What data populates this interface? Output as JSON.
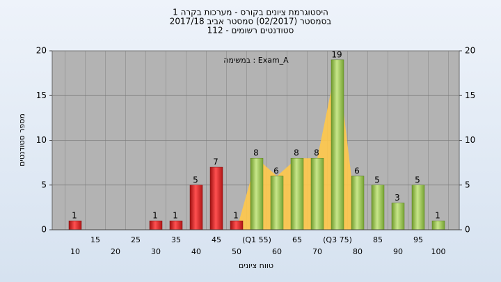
{
  "chart_data": {
    "type": "bar",
    "title": "היסטוגרמת ציונים בקורס - מערכות בקרה 1",
    "subtitle": "בסמסטר  (02/2017)  סמסטר אביב 2017/18",
    "subtitle2": "סטודנטים רשומים - 112",
    "annotation": "Exam_A : במשימה",
    "x_label": "טווח ציונים",
    "y_label": "מספר סטודנטים",
    "categories": [
      "10",
      "15",
      "20",
      "25",
      "30",
      "35",
      "40",
      "45",
      "50",
      "(Q1 55)",
      "60",
      "65",
      "70",
      "(Q3 75)",
      "80",
      "85",
      "90",
      "95",
      "100"
    ],
    "values": [
      1,
      0,
      0,
      0,
      1,
      1,
      5,
      7,
      1,
      8,
      6,
      8,
      8,
      19,
      6,
      5,
      3,
      5,
      1
    ],
    "colors": {
      "fail": "#d42020",
      "pass": "#8cbf3f"
    },
    "pass_from_index": 9,
    "highlight": {
      "from_index": 9,
      "to_index": 13,
      "color": "#ffc84a"
    },
    "ylim": [
      0,
      20
    ],
    "yticks": [
      0,
      5,
      10,
      15,
      20
    ],
    "grid": true
  }
}
